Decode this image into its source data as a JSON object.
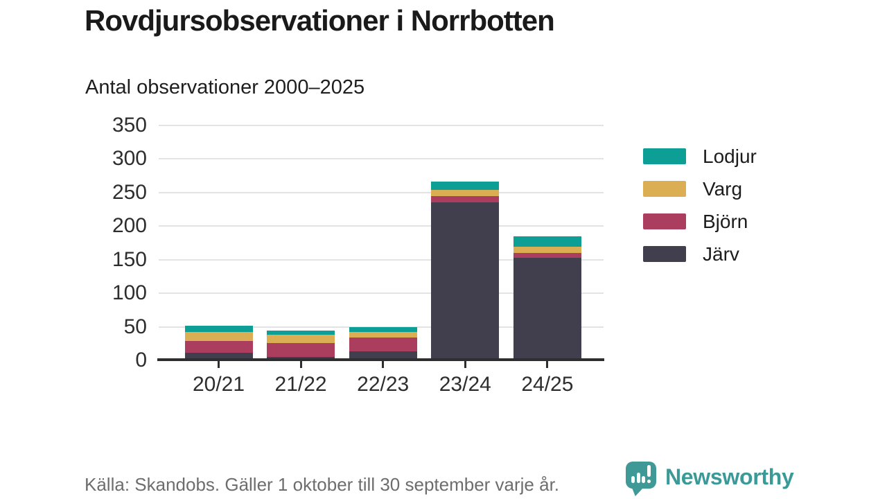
{
  "title": "Rovdjursobservationer i Norrbotten",
  "subtitle": "Antal observationer 2000–2025",
  "footer": {
    "source": "Källa: Skandobs. Gäller 1 oktober till 30 september varje år."
  },
  "branding": {
    "name": "Newsworthy",
    "logo_color": "#3f9a97",
    "text_color": "#3b9a97"
  },
  "chart_data": {
    "type": "bar",
    "stacked": true,
    "title": "Rovdjursobservationer i Norrbotten",
    "subtitle": "Antal observationer 2000–2025",
    "xlabel": "",
    "ylabel": "",
    "categories": [
      "20/21",
      "21/22",
      "22/23",
      "23/24",
      "24/25"
    ],
    "series": [
      {
        "name": "Lodjur",
        "color": "#0d9e96",
        "values": [
          10,
          6,
          7,
          12,
          16
        ]
      },
      {
        "name": "Varg",
        "color": "#dcae54",
        "values": [
          13,
          12,
          8,
          10,
          9
        ]
      },
      {
        "name": "Björn",
        "color": "#ab3e5f",
        "values": [
          18,
          21,
          21,
          9,
          7
        ]
      },
      {
        "name": "Järv",
        "color": "#413e4d",
        "values": [
          11,
          5,
          13,
          235,
          153
        ]
      }
    ],
    "totals": [
      52,
      44,
      49,
      266,
      185
    ],
    "stack_order_bottom_to_top": [
      "Järv",
      "Björn",
      "Varg",
      "Lodjur"
    ],
    "ylim": [
      0,
      350
    ],
    "yticks": [
      0,
      50,
      100,
      150,
      200,
      250,
      300,
      350
    ],
    "grid": true,
    "legend_position": "right"
  }
}
